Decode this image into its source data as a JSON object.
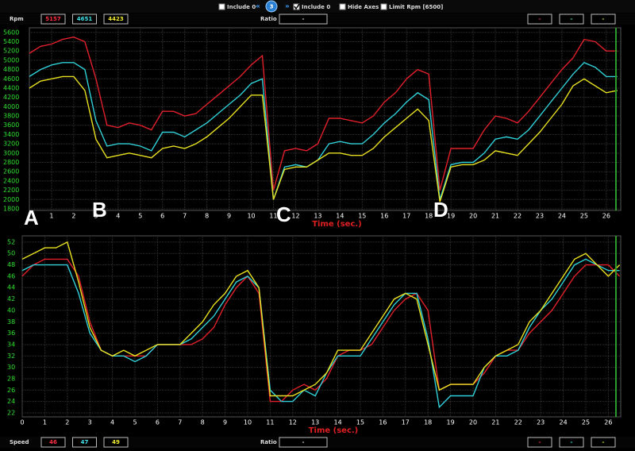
{
  "toolbar": {
    "items": [
      {
        "label": "Include 0",
        "checked": false
      },
      {
        "label": "Include 0",
        "checked": true
      },
      {
        "label": "Hide Axes",
        "checked": false
      },
      {
        "label": "Limit Rpm [6500]",
        "checked": false
      }
    ],
    "nav_left": "«",
    "page": "3",
    "nav_right": "»"
  },
  "top_panel": {
    "label": "Rpm",
    "readouts": [
      5157,
      4651,
      4423
    ],
    "ratio_label": "Ratio",
    "ratio_value": "-",
    "right_boxes": [
      "-",
      "-",
      "-"
    ]
  },
  "bottom_panel": {
    "label": "Speed",
    "readouts": [
      46,
      47,
      49
    ],
    "ratio_label": "Ratio",
    "ratio_value": "-",
    "right_boxes": [
      "-",
      "-",
      "-"
    ]
  },
  "annotations": [
    "A",
    "B",
    "C",
    "D"
  ],
  "chart_data": [
    {
      "type": "line",
      "x_label": "Time (sec.)",
      "x": [
        0,
        0.5,
        1,
        1.5,
        2,
        2.5,
        3,
        3.5,
        4,
        4.5,
        5,
        5.5,
        6,
        6.5,
        7,
        7.5,
        8,
        8.5,
        9,
        9.5,
        10,
        10.5,
        11,
        11.5,
        12,
        12.5,
        13,
        13.5,
        14,
        14.5,
        15,
        15.5,
        16,
        16.5,
        17,
        17.5,
        18,
        18.5,
        19,
        19.5,
        20,
        20.5,
        21,
        21.5,
        22,
        22.5,
        23,
        23.5,
        24,
        24.5,
        25,
        25.5,
        26,
        26.5
      ],
      "xlim": [
        0,
        26.65
      ],
      "xticks": [
        1,
        2,
        3,
        4,
        5,
        6,
        7,
        8,
        9,
        10,
        11,
        12,
        13,
        14,
        15,
        16,
        17,
        18,
        19,
        20,
        21,
        22,
        23,
        24,
        25,
        26
      ],
      "ylim": [
        1765,
        5700
      ],
      "yticks": [
        1800,
        2000,
        2200,
        2400,
        2600,
        2800,
        3000,
        3200,
        3400,
        3600,
        3800,
        4000,
        4200,
        4400,
        4600,
        4800,
        5000,
        5200,
        5400,
        5600
      ],
      "grid": true,
      "series": [
        {
          "color": "#e0202a",
          "values": [
            5150,
            5300,
            5350,
            5450,
            5500,
            5400,
            4600,
            3600,
            3550,
            3650,
            3600,
            3500,
            3900,
            3900,
            3800,
            3850,
            4050,
            4250,
            4450,
            4650,
            4900,
            5100,
            2200,
            3050,
            3100,
            3050,
            3200,
            3750,
            3750,
            3700,
            3650,
            3800,
            4100,
            4300,
            4600,
            4800,
            4700,
            2200,
            3100,
            3100,
            3100,
            3500,
            3800,
            3750,
            3650,
            3900,
            4200,
            4500,
            4800,
            5050,
            5450,
            5400,
            5200,
            5200
          ]
        },
        {
          "color": "#30d0d8",
          "values": [
            4650,
            4800,
            4900,
            4950,
            4950,
            4800,
            3700,
            3150,
            3200,
            3200,
            3150,
            3050,
            3450,
            3450,
            3350,
            3500,
            3650,
            3850,
            4050,
            4250,
            4500,
            4600,
            2000,
            2700,
            2750,
            2700,
            2850,
            3200,
            3250,
            3200,
            3200,
            3400,
            3650,
            3850,
            4100,
            4300,
            4150,
            2000,
            2750,
            2800,
            2800,
            3000,
            3300,
            3350,
            3300,
            3500,
            3800,
            4100,
            4400,
            4700,
            4950,
            4850,
            4650,
            4650
          ]
        },
        {
          "color": "#e8e020",
          "values": [
            4400,
            4550,
            4600,
            4650,
            4650,
            4350,
            3300,
            2900,
            2950,
            3000,
            2950,
            2900,
            3100,
            3150,
            3100,
            3200,
            3350,
            3550,
            3750,
            4000,
            4250,
            4250,
            2000,
            2650,
            2700,
            2700,
            2850,
            3000,
            3000,
            2950,
            2950,
            3100,
            3350,
            3550,
            3750,
            3950,
            3700,
            1950,
            2700,
            2750,
            2750,
            2850,
            3050,
            3000,
            2950,
            3200,
            3450,
            3750,
            4050,
            4450,
            4600,
            4450,
            4300,
            4350
          ]
        }
      ]
    },
    {
      "type": "line",
      "x_label": "Time (sec.)",
      "x": [
        0,
        0.5,
        1,
        1.5,
        2,
        2.5,
        3,
        3.5,
        4,
        4.5,
        5,
        5.5,
        6,
        6.5,
        7,
        7.5,
        8,
        8.5,
        9,
        9.5,
        10,
        10.5,
        11,
        11.5,
        12,
        12.5,
        13,
        13.5,
        14,
        14.5,
        15,
        15.5,
        16,
        16.5,
        17,
        17.5,
        18,
        18.5,
        19,
        19.5,
        20,
        20.5,
        21,
        21.5,
        22,
        22.5,
        23,
        23.5,
        24,
        24.5,
        25,
        25.5,
        26,
        26.5
      ],
      "xlim": [
        0,
        26.55
      ],
      "xticks": [
        0,
        1,
        2,
        3,
        4,
        5,
        6,
        7,
        8,
        9,
        10,
        11,
        12,
        13,
        14,
        15,
        16,
        17,
        18,
        19,
        20,
        21,
        22,
        23,
        24,
        25,
        26
      ],
      "ylim": [
        21.3,
        53.1
      ],
      "yticks": [
        22,
        24,
        26,
        28,
        30,
        32,
        34,
        36,
        38,
        40,
        42,
        44,
        46,
        48,
        50,
        52
      ],
      "grid": true,
      "series": [
        {
          "color": "#e0202a",
          "values": [
            46,
            48,
            49,
            49,
            49,
            46,
            38,
            33,
            32,
            32,
            32,
            32,
            34,
            34,
            34,
            34,
            35,
            37,
            41,
            44,
            46,
            43,
            24,
            24,
            26,
            27,
            26,
            28,
            32,
            33,
            33,
            34,
            37,
            40,
            42,
            43,
            40,
            26,
            27,
            27,
            27,
            29,
            32,
            33,
            33,
            36,
            38,
            40,
            43,
            46,
            48,
            48,
            48,
            46
          ]
        },
        {
          "color": "#30d0d8",
          "values": [
            47,
            48,
            48,
            48,
            48,
            43,
            36,
            33,
            32,
            32,
            31,
            32,
            34,
            34,
            34,
            35,
            37,
            39,
            42,
            45,
            46,
            44,
            26,
            24,
            24,
            26,
            25,
            29,
            32,
            32,
            32,
            35,
            38,
            41,
            43,
            43,
            35,
            23,
            25,
            25,
            25,
            30,
            32,
            32,
            33,
            37,
            40,
            42,
            45,
            48,
            49,
            48,
            47,
            47
          ]
        },
        {
          "color": "#e8e020",
          "values": [
            49,
            50,
            51,
            51,
            52,
            45,
            37,
            33,
            32,
            33,
            32,
            33,
            34,
            34,
            34,
            36,
            38,
            41,
            43,
            46,
            47,
            44,
            25,
            25,
            25,
            26,
            27,
            29,
            33,
            33,
            33,
            36,
            39,
            42,
            43,
            42,
            34,
            26,
            27,
            27,
            27,
            30,
            32,
            33,
            34,
            38,
            40,
            43,
            46,
            49,
            50,
            48,
            46,
            48
          ]
        }
      ]
    }
  ]
}
